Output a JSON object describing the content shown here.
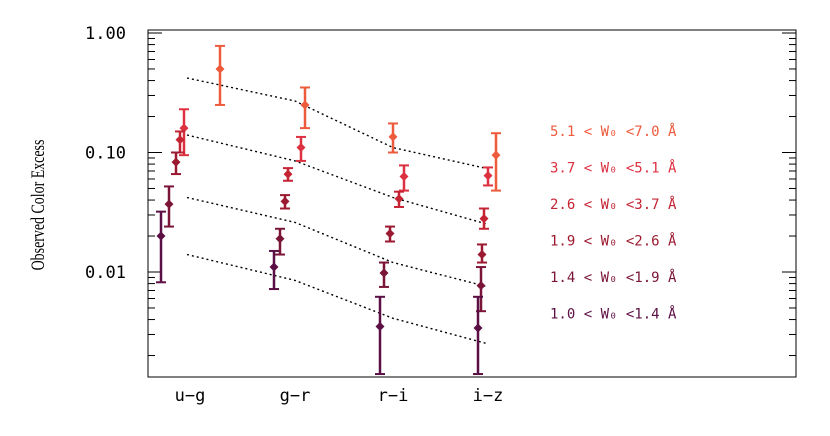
{
  "chart_data": {
    "type": "scatter",
    "ylabel": "Observed Color Excess",
    "yscale": "log",
    "ylim": [
      0.0015,
      1.1
    ],
    "yticks": [
      {
        "value": 1.0,
        "label": "1.00"
      },
      {
        "value": 0.1,
        "label": "0.10"
      },
      {
        "value": 0.01,
        "label": "0.01"
      }
    ],
    "categories": [
      "u−g",
      "g−r",
      "r−i",
      "i−z"
    ],
    "series": [
      {
        "name": "5.1 < W₀ <7.0 Å",
        "color": "#ee5a3c",
        "values": [
          0.5,
          0.25,
          0.135,
          0.095
        ],
        "err_low": [
          0.25,
          0.16,
          0.1,
          0.048
        ],
        "err_high": [
          0.78,
          0.35,
          0.175,
          0.145
        ],
        "model": [
          0.42,
          0.27,
          0.11,
          0.073
        ]
      },
      {
        "name": "3.7 < W₀ <5.1 Å",
        "color": "#dd3040",
        "values": [
          0.16,
          0.11,
          0.063,
          0.064
        ],
        "err_low": [
          0.095,
          0.085,
          0.048,
          0.053
        ],
        "err_high": [
          0.23,
          0.135,
          0.078,
          0.075
        ],
        "model": [
          0.14,
          0.085,
          0.042,
          0.025
        ]
      },
      {
        "name": "2.6 < W₀ <3.7 Å",
        "color": "#c42433",
        "values": [
          0.128,
          0.066,
          0.041,
          0.028
        ],
        "err_low": [
          0.1,
          0.058,
          0.035,
          0.023
        ],
        "err_high": [
          0.15,
          0.074,
          0.047,
          0.034
        ],
        "model": [
          0.14,
          0.085,
          0.042,
          0.025
        ]
      },
      {
        "name": "1.9 < W₀ <2.6 Å",
        "color": "#9c1a30",
        "values": [
          0.083,
          0.039,
          0.021,
          0.014
        ],
        "err_low": [
          0.066,
          0.034,
          0.018,
          0.012
        ],
        "err_high": [
          0.1,
          0.044,
          0.024,
          0.017
        ],
        "model": [
          0.042,
          0.026,
          0.012,
          0.0075
        ]
      },
      {
        "name": "1.4 < W₀ <1.9 Å",
        "color": "#7a1438",
        "values": [
          0.037,
          0.019,
          0.0098,
          0.0077
        ],
        "err_low": [
          0.024,
          0.014,
          0.0075,
          0.0047
        ],
        "err_high": [
          0.052,
          0.023,
          0.012,
          0.011
        ],
        "model": [
          0.042,
          0.026,
          0.012,
          0.0075
        ]
      },
      {
        "name": "1.0 < W₀ <1.4 Å",
        "color": "#5c0f44",
        "values": [
          0.02,
          0.011,
          0.0035,
          0.0034
        ],
        "err_low": [
          0.0082,
          0.0072,
          0.0014,
          0.0014
        ],
        "err_high": [
          0.032,
          0.015,
          0.0062,
          0.0062
        ],
        "model": [
          0.014,
          0.0085,
          0.0041,
          0.0025
        ]
      }
    ],
    "legend_placement": "right"
  }
}
